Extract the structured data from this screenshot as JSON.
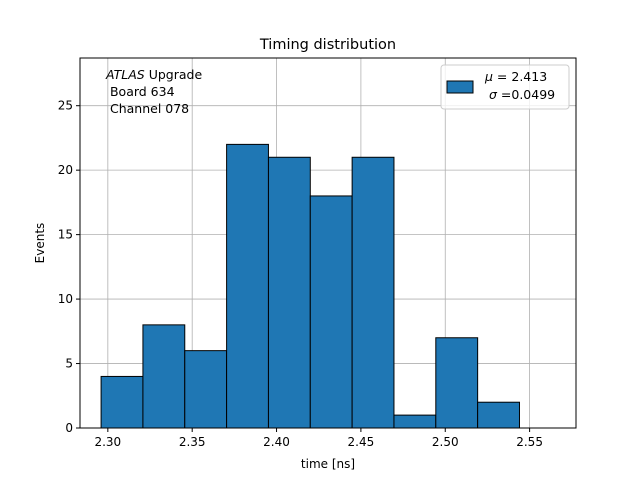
{
  "chart_data": {
    "type": "bar",
    "title": "Timing distribution",
    "xlabel": "time [ns]",
    "ylabel": "Events",
    "xlim": [
      2.2835,
      2.5775
    ],
    "ylim": [
      0,
      28.7
    ],
    "xticks": [
      2.3,
      2.35,
      2.4,
      2.45,
      2.5,
      2.55
    ],
    "xtick_labels": [
      "2.30",
      "2.35",
      "2.40",
      "2.45",
      "2.50",
      "2.55"
    ],
    "yticks": [
      0,
      5,
      10,
      15,
      20,
      25
    ],
    "ytick_labels": [
      "0",
      "5",
      "10",
      "15",
      "20",
      "25"
    ],
    "grid": true,
    "bin_edges": [
      2.296,
      2.3208,
      2.3456,
      2.3704,
      2.3952,
      2.42,
      2.4448,
      2.4696,
      2.4944,
      2.5192,
      2.544
    ],
    "values": [
      4,
      8,
      6,
      22,
      21,
      18,
      21,
      1,
      7,
      2
    ],
    "bar_color": "#1f77b4",
    "edge_color": "#000000",
    "legend": {
      "position": "top-right",
      "mu_label": "μ",
      "mu_text": " = 2.413",
      "sigma_label": "σ",
      "sigma_text": " =0.0499"
    },
    "annotation": {
      "position": "top-left",
      "italic": "ATLAS",
      "line1_rest": " Upgrade",
      "line2": " Board 634",
      "line3": " Channel 078"
    }
  }
}
